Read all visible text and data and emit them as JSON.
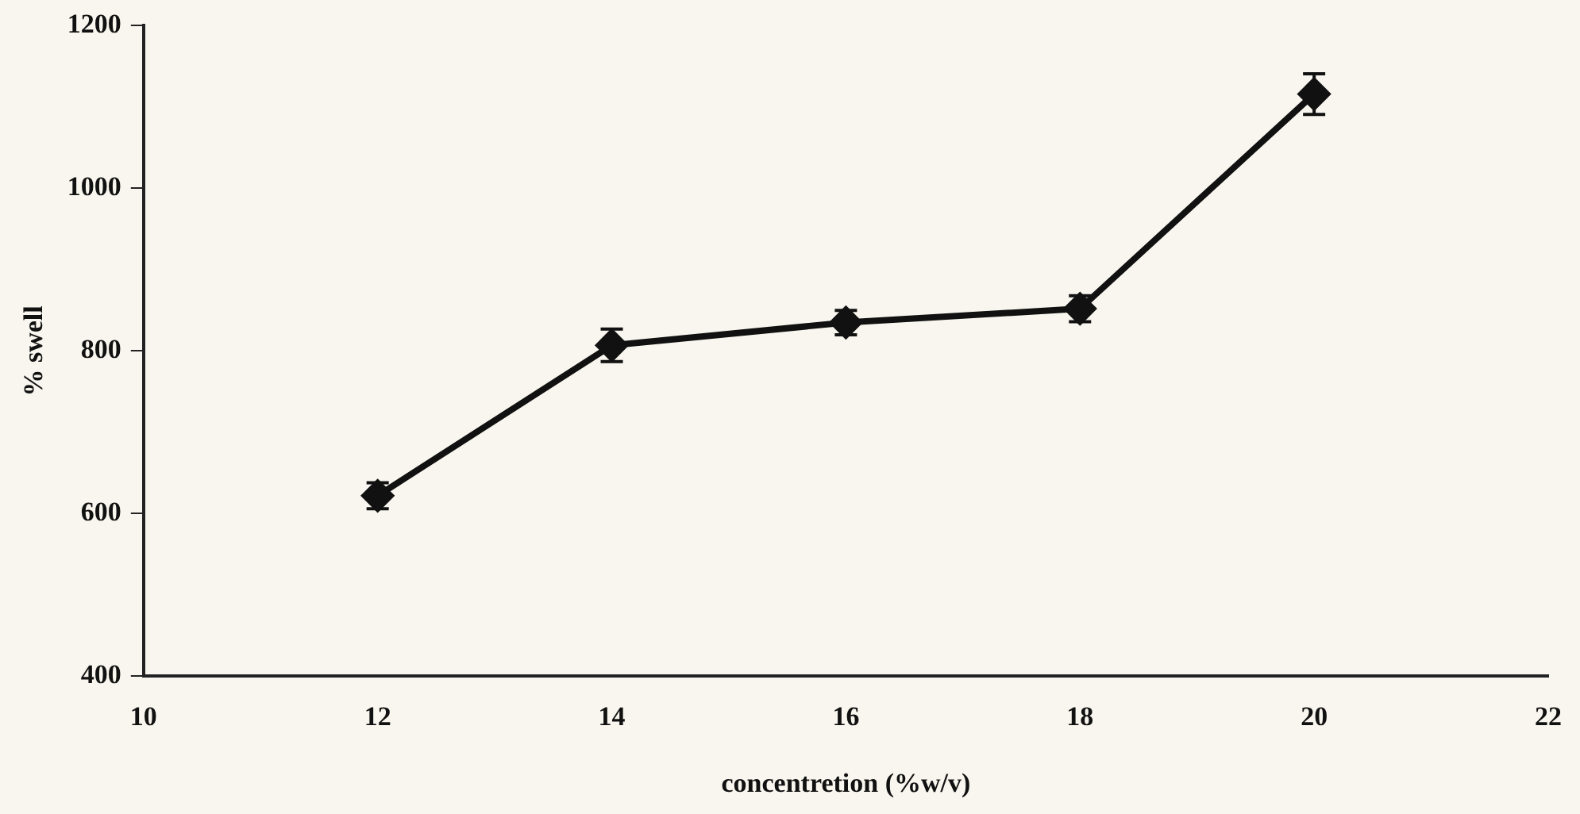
{
  "chart_data": {
    "type": "line",
    "xlabel": "concentretion (%w/v)",
    "ylabel": "% swell",
    "x": [
      12,
      14,
      16,
      18,
      20
    ],
    "series": [
      {
        "color": "#111111",
        "values": [
          622,
          807,
          835,
          852,
          1116
        ],
        "errors": [
          16,
          20,
          15,
          16,
          25
        ]
      }
    ],
    "xlim": [
      10,
      22
    ],
    "xticks": [
      10,
      12,
      14,
      16,
      18,
      20,
      22
    ],
    "ylim": [
      400,
      1200
    ],
    "yticks": [
      400,
      600,
      800,
      1000,
      1200
    ],
    "grid": false,
    "legend": false,
    "marker": "diamond",
    "line_style": "solid"
  }
}
